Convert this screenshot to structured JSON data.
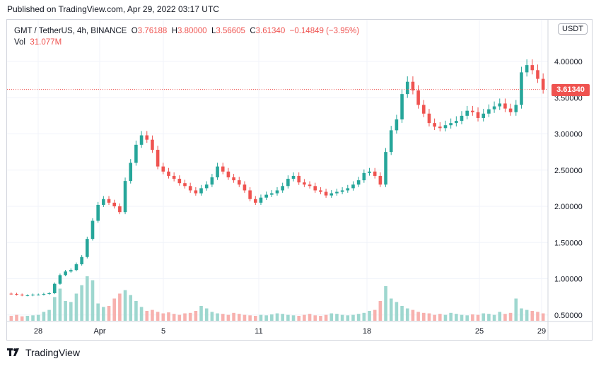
{
  "header": {
    "published": "Published on TradingView.com, Apr 29, 2022 03:17 UTC"
  },
  "legend": {
    "symbol": "GMT / TetherUS, 4h, BINANCE",
    "open_label": "O",
    "open": "3.76188",
    "high_label": "H",
    "high": "3.80000",
    "low_label": "L",
    "low": "3.56605",
    "close_label": "C",
    "close": "3.61340",
    "change": "−0.14849 (−3.95%)",
    "vol_label": "Vol",
    "vol": "31.077M"
  },
  "currency_button": "USDT",
  "price_tag": "3.61340",
  "footer": {
    "brand": "TradingView",
    "logo_icon": "tradingview-logo-icon"
  },
  "colors": {
    "up": "#26a69a",
    "down": "#ef5350",
    "up_vol": "#9ed7cf",
    "down_vol": "#f7b1ae",
    "grid": "#f0f3fa"
  },
  "chart_data": {
    "type": "candlestick",
    "interval": "4h",
    "y_axis_ticks": [
      4.0,
      3.5,
      3.0,
      2.5,
      2.0,
      1.5,
      1.0,
      0.5
    ],
    "y_axis_labels": [
      "4.00000",
      "3.50000",
      "3.00000",
      "2.50000",
      "2.00000",
      "1.50000",
      "1.00000",
      "0.50000"
    ],
    "x_axis_labels": [
      "28",
      "Apr",
      "5",
      "11",
      "18",
      "25",
      "29"
    ],
    "last_price": 3.6134,
    "close_series": [
      0.79,
      0.78,
      0.77,
      0.77,
      0.78,
      0.78,
      0.79,
      0.8,
      0.93,
      1.05,
      1.1,
      1.12,
      1.2,
      1.3,
      1.55,
      1.8,
      2.02,
      2.1,
      2.05,
      2.0,
      1.92,
      2.35,
      2.6,
      2.85,
      2.98,
      2.92,
      2.78,
      2.55,
      2.48,
      2.42,
      2.38,
      2.32,
      2.28,
      2.22,
      2.18,
      2.25,
      2.3,
      2.4,
      2.55,
      2.48,
      2.4,
      2.36,
      2.3,
      2.22,
      2.1,
      2.05,
      2.12,
      2.16,
      2.18,
      2.22,
      2.28,
      2.38,
      2.42,
      2.33,
      2.3,
      2.28,
      2.22,
      2.2,
      2.15,
      2.18,
      2.2,
      2.22,
      2.25,
      2.3,
      2.36,
      2.46,
      2.48,
      2.42,
      2.3,
      2.75,
      3.05,
      3.2,
      3.55,
      3.72,
      3.6,
      3.4,
      3.28,
      3.15,
      3.1,
      3.08,
      3.12,
      3.15,
      3.18,
      3.25,
      3.32,
      3.3,
      3.22,
      3.28,
      3.34,
      3.38,
      3.42,
      3.35,
      3.3,
      3.4,
      3.85,
      3.95,
      3.88,
      3.76,
      3.61
    ],
    "volume_series": [
      0.1,
      0.12,
      0.09,
      0.1,
      0.11,
      0.12,
      0.18,
      0.22,
      0.48,
      0.65,
      0.4,
      0.38,
      0.55,
      0.72,
      0.9,
      0.82,
      0.35,
      0.28,
      0.3,
      0.45,
      0.55,
      0.62,
      0.52,
      0.4,
      0.28,
      0.2,
      0.22,
      0.18,
      0.15,
      0.17,
      0.14,
      0.12,
      0.15,
      0.16,
      0.2,
      0.3,
      0.25,
      0.18,
      0.15,
      0.14,
      0.12,
      0.16,
      0.14,
      0.12,
      0.11,
      0.1,
      0.12,
      0.11,
      0.13,
      0.15,
      0.14,
      0.12,
      0.11,
      0.1,
      0.12,
      0.14,
      0.11,
      0.1,
      0.12,
      0.15,
      0.14,
      0.12,
      0.11,
      0.12,
      0.14,
      0.16,
      0.2,
      0.22,
      0.4,
      0.7,
      0.45,
      0.38,
      0.3,
      0.25,
      0.22,
      0.18,
      0.16,
      0.15,
      0.12,
      0.14,
      0.12,
      0.16,
      0.14,
      0.12,
      0.11,
      0.13,
      0.12,
      0.15,
      0.14,
      0.12,
      0.18,
      0.14,
      0.16,
      0.45,
      0.25,
      0.22,
      0.2,
      0.18,
      0.15
    ]
  }
}
